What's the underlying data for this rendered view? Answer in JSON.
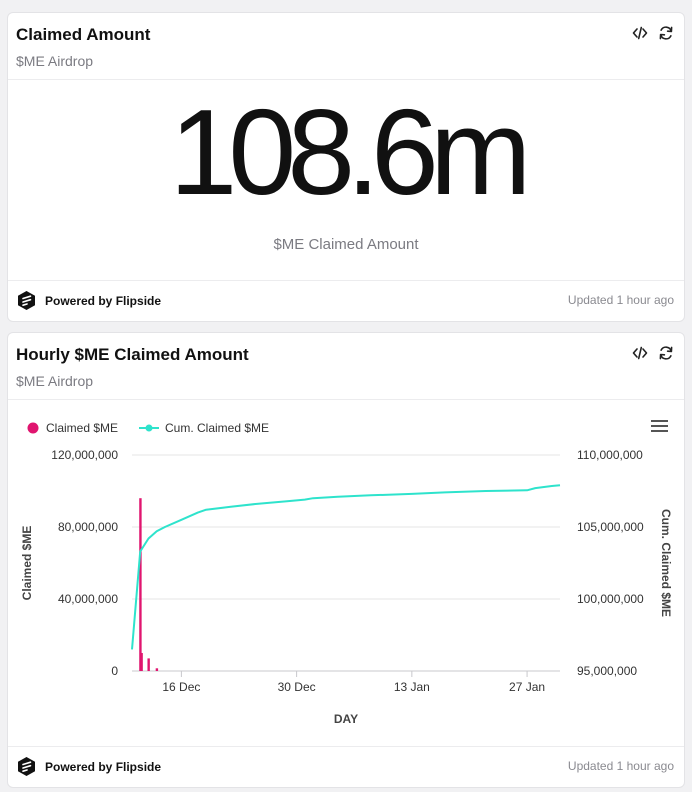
{
  "cards": [
    {
      "title": "Claimed Amount",
      "subtitle": "$ME Airdrop",
      "big_value": "108.6m",
      "big_label": "$ME Claimed Amount",
      "footer": {
        "brand": "Powered by Flipside",
        "updated": "Updated 1 hour ago"
      },
      "icons": [
        "code-icon",
        "refresh-icon",
        "flipside-logo-icon"
      ]
    },
    {
      "title": "Hourly $ME Claimed Amount",
      "subtitle": "$ME Airdrop",
      "footer": {
        "brand": "Powered by Flipside",
        "updated": "Updated 1 hour ago"
      },
      "icons": [
        "code-icon",
        "refresh-icon",
        "menu-icon",
        "flipside-logo-icon"
      ]
    }
  ],
  "chart_data": {
    "type": "bar+line",
    "xlabel": "DAY",
    "x_ticks": [
      "16 Dec",
      "30 Dec",
      "13 Jan",
      "27 Jan"
    ],
    "x_range": [
      "2024-12-10",
      "2025-01-31"
    ],
    "y_left": {
      "label": "Claimed $ME",
      "range": [
        0,
        120000000
      ],
      "ticks": [
        "0",
        "40,000,000",
        "80,000,000",
        "120,000,000"
      ]
    },
    "y_right": {
      "label": "Cum. Claimed $ME",
      "range": [
        95000000,
        110000000
      ],
      "ticks": [
        "95,000,000",
        "100,000,000",
        "105,000,000",
        "110,000,000"
      ]
    },
    "grid": true,
    "legend_position": "top-left",
    "series": [
      {
        "name": "Claimed $ME",
        "kind": "bar",
        "axis": "left",
        "color": "#e0156f",
        "points": [
          [
            "2024-12-11",
            96000000
          ],
          [
            "2024-12-11",
            10000000
          ],
          [
            "2024-12-12",
            7000000
          ],
          [
            "2024-12-13",
            1500000
          ]
        ]
      },
      {
        "name": "Cum. Claimed $ME",
        "kind": "line",
        "axis": "right",
        "color": "#2ee3cc",
        "points": [
          [
            "2024-12-10",
            96500000
          ],
          [
            "2024-12-11",
            103300000
          ],
          [
            "2024-12-12",
            104200000
          ],
          [
            "2024-12-13",
            104700000
          ],
          [
            "2024-12-14",
            105000000
          ],
          [
            "2024-12-16",
            105500000
          ],
          [
            "2024-12-18",
            106000000
          ],
          [
            "2024-12-19",
            106200000
          ],
          [
            "2024-12-22",
            106400000
          ],
          [
            "2024-12-25",
            106600000
          ],
          [
            "2024-12-29",
            106800000
          ],
          [
            "2024-12-31",
            106900000
          ],
          [
            "2025-01-01",
            107000000
          ],
          [
            "2025-01-04",
            107100000
          ],
          [
            "2025-01-08",
            107200000
          ],
          [
            "2025-01-13",
            107300000
          ],
          [
            "2025-01-17",
            107400000
          ],
          [
            "2025-01-22",
            107500000
          ],
          [
            "2025-01-27",
            107550000
          ],
          [
            "2025-01-28",
            107700000
          ],
          [
            "2025-01-30",
            107850000
          ],
          [
            "2025-01-31",
            107900000
          ]
        ]
      }
    ]
  }
}
